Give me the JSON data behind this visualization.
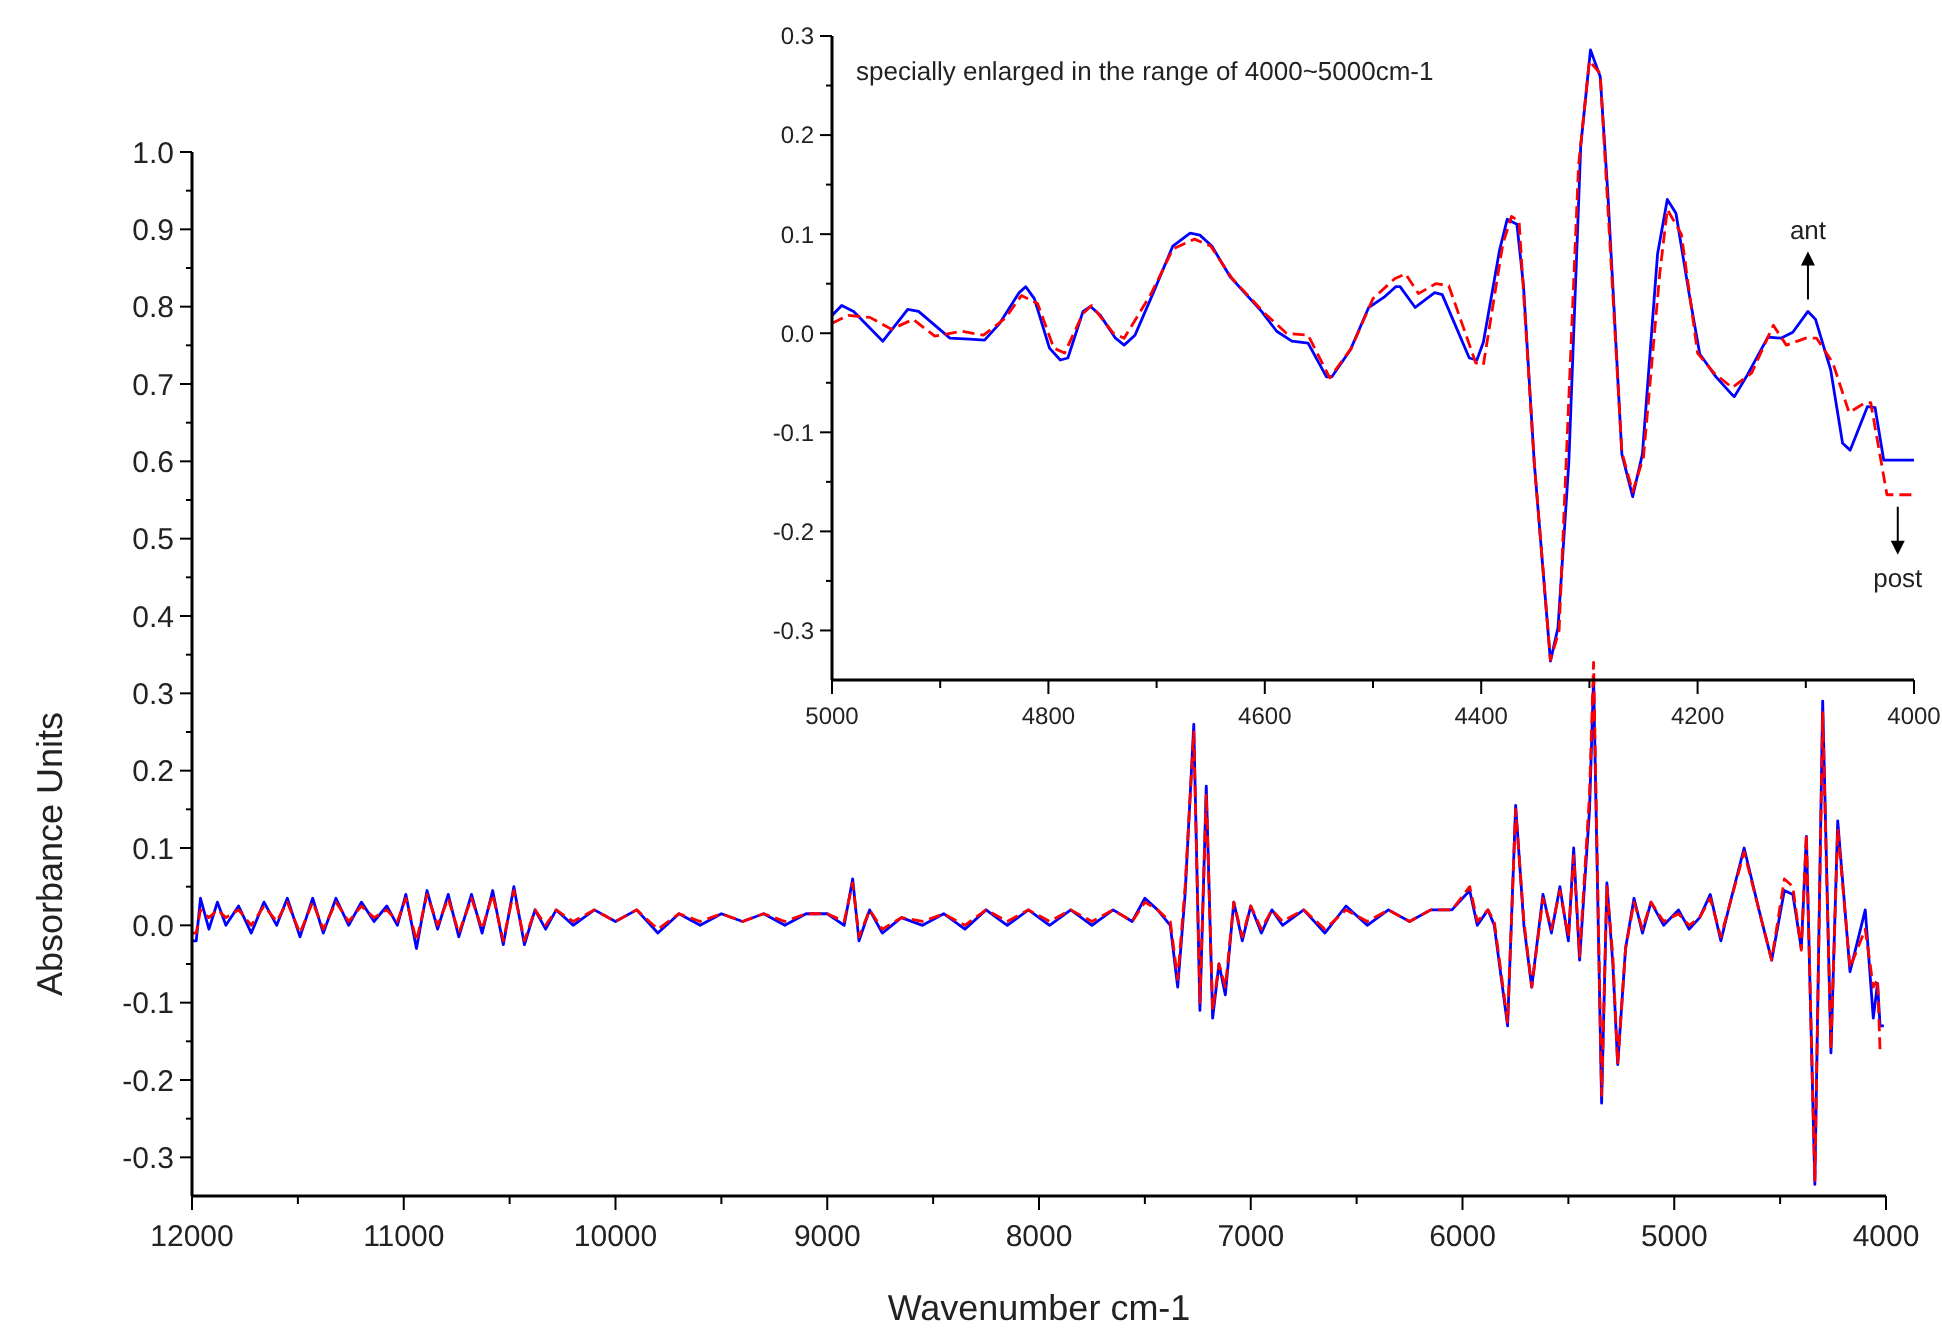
{
  "chart_data": [
    {
      "type": "line",
      "xlabel": "Wavenumber cm-1",
      "ylabel": "Absorbance Units",
      "xlim": [
        12000,
        4000
      ],
      "ylim": [
        -0.35,
        1.0
      ],
      "xticks": [
        12000,
        {
          "value": 11500,
          "label": null
        },
        11000,
        {
          "value": 10500,
          "label": null
        },
        10000,
        {
          "value": 9500,
          "label": null
        },
        9000,
        {
          "value": 8500,
          "label": null
        },
        8000,
        {
          "value": 7500,
          "label": null
        },
        7000,
        {
          "value": 6500,
          "label": null
        },
        6000,
        {
          "value": 5500,
          "label": null
        },
        5000,
        {
          "value": 4500,
          "label": null
        },
        4000
      ],
      "yticks": [
        {
          "value": -0.3,
          "label": "-0.3"
        },
        {
          "value": -0.25,
          "label": null
        },
        {
          "value": -0.2,
          "label": "-0.2"
        },
        {
          "value": -0.15,
          "label": null
        },
        {
          "value": -0.1,
          "label": "-0.1"
        },
        {
          "value": -0.05,
          "label": null
        },
        {
          "value": 0,
          "label": "0.0"
        },
        {
          "value": 0.05,
          "label": null
        },
        {
          "value": 0.1,
          "label": "0.1"
        },
        {
          "value": 0.15,
          "label": null
        },
        {
          "value": 0.2,
          "label": "0.2"
        },
        {
          "value": 0.25,
          "label": null
        },
        {
          "value": 0.3,
          "label": "0.3"
        },
        {
          "value": 0.35,
          "label": null
        },
        {
          "value": 0.4,
          "label": "0.4"
        },
        {
          "value": 0.45,
          "label": null
        },
        {
          "value": 0.5,
          "label": "0.5"
        },
        {
          "value": 0.55,
          "label": null
        },
        {
          "value": 0.6,
          "label": "0.6"
        },
        {
          "value": 0.65,
          "label": null
        },
        {
          "value": 0.7,
          "label": "0.7"
        },
        {
          "value": 0.75,
          "label": null
        },
        {
          "value": 0.8,
          "label": "0.8"
        },
        {
          "value": 0.85,
          "label": null
        },
        {
          "value": 0.9,
          "label": "0.9"
        },
        {
          "value": 0.95,
          "label": null
        },
        {
          "value": 1,
          "label": "1.0"
        }
      ],
      "grid": false,
      "marker": "none",
      "x": [
        12000,
        11980,
        11960,
        11920,
        11880,
        11840,
        11780,
        11720,
        11660,
        11600,
        11550,
        11490,
        11430,
        11380,
        11320,
        11260,
        11200,
        11140,
        11080,
        11030,
        10990,
        10940,
        10890,
        10840,
        10790,
        10740,
        10680,
        10630,
        10580,
        10530,
        10480,
        10430,
        10380,
        10330,
        10280,
        10200,
        10100,
        10000,
        9900,
        9800,
        9700,
        9600,
        9500,
        9400,
        9300,
        9200,
        9100,
        9000,
        8920,
        8880,
        8850,
        8800,
        8740,
        8650,
        8550,
        8450,
        8350,
        8250,
        8150,
        8050,
        7950,
        7850,
        7750,
        7650,
        7560,
        7500,
        7440,
        7380,
        7345,
        7310,
        7269,
        7240,
        7210,
        7180,
        7150,
        7120,
        7080,
        7040,
        7000,
        6950,
        6900,
        6850,
        6750,
        6650,
        6550,
        6450,
        6350,
        6250,
        6150,
        6050,
        5966,
        5930,
        5880,
        5850,
        5787,
        5749,
        5710,
        5673,
        5620,
        5580,
        5540,
        5500,
        5475,
        5447,
        5400,
        5381,
        5343,
        5318,
        5290,
        5267,
        5230,
        5190,
        5150,
        5110,
        5050,
        4980,
        4930,
        4880,
        4830,
        4780,
        4740,
        4670,
        4600,
        4540,
        4480,
        4440,
        4400,
        4376,
        4336,
        4299,
        4260,
        4228,
        4170,
        4098,
        4060,
        4040,
        4028,
        4010
      ],
      "series": [
        {
          "color": "#0000ff",
          "line_style": "solid",
          "values": [
            -0.02,
            -0.02,
            0.035,
            -0.005,
            0.03,
            0,
            0.025,
            -0.01,
            0.03,
            0,
            0.035,
            -0.015,
            0.035,
            -0.01,
            0.035,
            0,
            0.03,
            0.005,
            0.025,
            0,
            0.04,
            -0.03,
            0.045,
            -0.005,
            0.04,
            -0.015,
            0.04,
            -0.01,
            0.045,
            -0.025,
            0.05,
            -0.025,
            0.02,
            -0.005,
            0.02,
            0,
            0.02,
            0.005,
            0.02,
            -0.01,
            0.015,
            0,
            0.015,
            0.005,
            0.015,
            0,
            0.015,
            0.015,
            0,
            0.06,
            -0.02,
            0.02,
            -0.01,
            0.01,
            0,
            0.015,
            -0.005,
            0.02,
            0,
            0.02,
            0,
            0.02,
            0,
            0.02,
            0.005,
            0.035,
            0.02,
            0,
            -0.08,
            0.04,
            0.26,
            -0.11,
            0.18,
            -0.12,
            -0.05,
            -0.09,
            0.03,
            -0.02,
            0.025,
            -0.01,
            0.02,
            0,
            0.02,
            -0.01,
            0.025,
            0,
            0.02,
            0.005,
            0.02,
            0.02,
            0.045,
            0,
            0.02,
            0,
            -0.13,
            0.155,
            0,
            -0.08,
            0.04,
            -0.01,
            0.05,
            -0.02,
            0.1,
            -0.045,
            0.15,
            0.32,
            -0.23,
            0.055,
            -0.05,
            -0.18,
            -0.03,
            0.035,
            -0.01,
            0.03,
            0,
            0.02,
            -0.005,
            0.01,
            0.04,
            -0.02,
            0.025,
            0.1,
            0.02,
            -0.045,
            0.045,
            0.04,
            -0.03,
            0.115,
            -0.335,
            0.29,
            -0.165,
            0.135,
            -0.06,
            0.02,
            -0.12,
            -0.075,
            -0.13,
            -0.13
          ]
        },
        {
          "color": "#ff0000",
          "line_style": "dashed",
          "values": [
            -0.01,
            -0.01,
            0.02,
            0.01,
            0.02,
            0.01,
            0.02,
            0,
            0.025,
            0.005,
            0.03,
            -0.01,
            0.03,
            -0.005,
            0.03,
            0.005,
            0.025,
            0.01,
            0.02,
            0.005,
            0.035,
            -0.02,
            0.04,
            0,
            0.035,
            -0.01,
            0.035,
            -0.005,
            0.04,
            -0.02,
            0.045,
            -0.02,
            0.02,
            0,
            0.02,
            0.005,
            0.02,
            0.005,
            0.02,
            -0.005,
            0.015,
            0.005,
            0.015,
            0.005,
            0.015,
            0.005,
            0.015,
            0.015,
            0.005,
            0.055,
            -0.015,
            0.02,
            -0.005,
            0.01,
            0.005,
            0.015,
            0,
            0.02,
            0.005,
            0.02,
            0.005,
            0.02,
            0.005,
            0.02,
            0.005,
            0.03,
            0.02,
            0.005,
            -0.07,
            0.05,
            0.25,
            -0.1,
            0.17,
            -0.11,
            -0.05,
            -0.08,
            0.03,
            -0.015,
            0.025,
            -0.005,
            0.02,
            0.005,
            0.02,
            -0.005,
            0.02,
            0.005,
            0.02,
            0.005,
            0.02,
            0.02,
            0.05,
            0.005,
            0.02,
            0.005,
            -0.125,
            0.15,
            0.005,
            -0.08,
            0.035,
            -0.005,
            0.045,
            -0.015,
            0.09,
            -0.04,
            0.17,
            0.34,
            -0.22,
            0.05,
            -0.04,
            -0.18,
            -0.03,
            0.03,
            -0.005,
            0.03,
            0.005,
            0.015,
            0,
            0.01,
            0.035,
            -0.015,
            0.025,
            0.095,
            0.02,
            -0.045,
            0.06,
            0.05,
            -0.032,
            0.118,
            -0.33,
            0.275,
            -0.16,
            0.125,
            -0.055,
            -0.005,
            -0.08,
            -0.07,
            -0.163,
            -0.163
          ]
        }
      ]
    },
    {
      "type": "line",
      "annotations": [
        "specially enlarged in the range of 4000~5000cm-1",
        {
          "text": "ant",
          "x": 4098,
          "y": 0.022
        },
        {
          "text": "post",
          "x": 4015,
          "y": -0.163
        }
      ],
      "xlim": [
        5000,
        4000
      ],
      "ylim": [
        -0.35,
        0.3
      ],
      "xticks": [
        5000,
        {
          "value": 4900,
          "label": null
        },
        4800,
        {
          "value": 4700,
          "label": null
        },
        4600,
        {
          "value": 4500,
          "label": null
        },
        4400,
        {
          "value": 4300,
          "label": null
        },
        4200,
        {
          "value": 4100,
          "label": null
        },
        4000
      ],
      "yticks": [
        {
          "value": -0.3,
          "label": "-0.3"
        },
        {
          "value": -0.25,
          "label": null
        },
        {
          "value": -0.2,
          "label": "-0.2"
        },
        {
          "value": -0.15,
          "label": null
        },
        {
          "value": -0.1,
          "label": "-0.1"
        },
        {
          "value": -0.05,
          "label": null
        },
        {
          "value": 0,
          "label": "0.0"
        },
        {
          "value": 0.05,
          "label": null
        },
        {
          "value": 0.1,
          "label": "0.1"
        },
        {
          "value": 0.15,
          "label": null
        },
        {
          "value": 0.2,
          "label": "0.2"
        },
        {
          "value": 0.25,
          "label": null
        },
        {
          "value": 0.3,
          "label": "0.3"
        }
      ],
      "grid": false,
      "marker": "none",
      "series": [
        {
          "color": "#0000ff",
          "line_style": "solid",
          "x": [
            5000,
            4991,
            4980,
            4953,
            4930,
            4920,
            4891,
            4873,
            4859,
            4845,
            4827,
            4821,
            4813,
            4799,
            4789,
            4782,
            4768,
            4761,
            4752,
            4738,
            4730,
            4720,
            4703,
            4685,
            4669,
            4660,
            4649,
            4632,
            4603,
            4589,
            4575,
            4560,
            4543,
            4538,
            4521,
            4504,
            4489,
            4479,
            4475,
            4461,
            4443,
            4436,
            4411,
            4404,
            4398,
            4383,
            4376,
            4367,
            4361,
            4351,
            4336,
            4329,
            4319,
            4308,
            4299,
            4290,
            4283,
            4270,
            4260,
            4251,
            4237,
            4228,
            4220,
            4208,
            4198,
            4183,
            4169,
            4166,
            4155,
            4135,
            4123,
            4112,
            4098,
            4091,
            4077,
            4066,
            4059,
            4043,
            4036,
            4028,
            4000
          ],
          "values": [
            0.018,
            0.028,
            0.022,
            -0.008,
            0.024,
            0.022,
            -0.005,
            -0.006,
            -0.007,
            0.01,
            0.041,
            0.047,
            0.035,
            -0.015,
            -0.027,
            -0.025,
            0.022,
            0.027,
            0.018,
            -0.005,
            -0.012,
            -0.002,
            0.041,
            0.088,
            0.101,
            0.099,
            0.088,
            0.057,
            0.022,
            0.002,
            -0.008,
            -0.01,
            -0.044,
            -0.044,
            -0.017,
            0.026,
            0.037,
            0.047,
            0.047,
            0.026,
            0.041,
            0.039,
            -0.025,
            -0.027,
            -0.009,
            0.084,
            0.115,
            0.11,
            0.049,
            -0.13,
            -0.331,
            -0.297,
            -0.13,
            0.189,
            0.286,
            0.259,
            0.142,
            -0.122,
            -0.165,
            -0.122,
            0.08,
            0.135,
            0.121,
            0.041,
            -0.021,
            -0.044,
            -0.061,
            -0.064,
            -0.044,
            -0.004,
            -0.005,
            0.001,
            0.022,
            0.014,
            -0.037,
            -0.111,
            -0.118,
            -0.074,
            -0.075,
            -0.128,
            -0.128
          ]
        },
        {
          "color": "#ff0000",
          "line_style": "dashed",
          "x": [
            5000,
            4985,
            4965,
            4945,
            4925,
            4905,
            4880,
            4860,
            4840,
            4825,
            4810,
            4795,
            4785,
            4768,
            4760,
            4740,
            4730,
            4705,
            4685,
            4665,
            4650,
            4630,
            4600,
            4580,
            4560,
            4540,
            4520,
            4500,
            4480,
            4470,
            4458,
            4442,
            4430,
            4405,
            4398,
            4380,
            4372,
            4365,
            4351,
            4336,
            4328,
            4310,
            4300,
            4290,
            4270,
            4260,
            4250,
            4235,
            4228,
            4215,
            4200,
            4185,
            4168,
            4150,
            4130,
            4118,
            4100,
            4090,
            4075,
            4060,
            4045,
            4040,
            4025,
            4000
          ],
          "values": [
            0.01,
            0.018,
            0.016,
            0.004,
            0.014,
            -0.003,
            0.002,
            -0.002,
            0.015,
            0.038,
            0.03,
            -0.015,
            -0.02,
            0.02,
            0.028,
            0,
            -0.005,
            0.04,
            0.085,
            0.095,
            0.088,
            0.055,
            0.02,
            0,
            -0.002,
            -0.045,
            -0.015,
            0.035,
            0.055,
            0.06,
            0.04,
            0.05,
            0.048,
            -0.03,
            -0.032,
            0.09,
            0.118,
            0.113,
            -0.13,
            -0.33,
            -0.3,
            0.17,
            0.275,
            0.262,
            -0.12,
            -0.16,
            -0.125,
            0.06,
            0.125,
            0.1,
            -0.02,
            -0.04,
            -0.055,
            -0.04,
            0.008,
            -0.012,
            -0.005,
            -0.005,
            -0.03,
            -0.08,
            -0.07,
            -0.07,
            -0.163,
            -0.163
          ]
        }
      ]
    }
  ]
}
